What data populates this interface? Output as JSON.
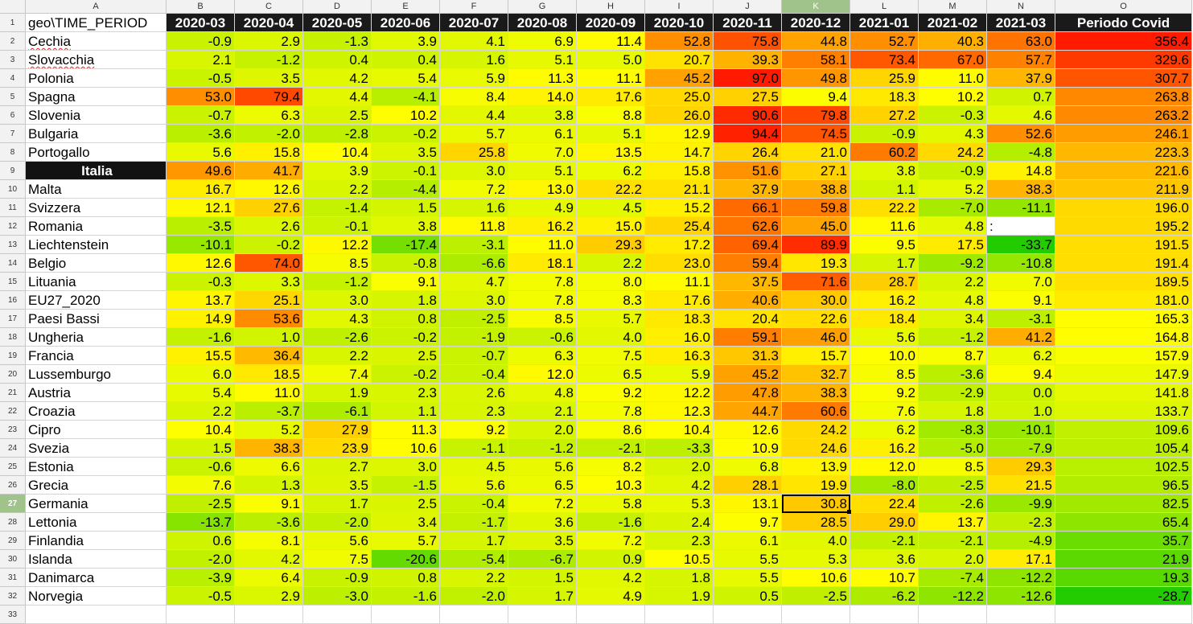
{
  "spreadsheet": {
    "column_letters": [
      "A",
      "B",
      "C",
      "D",
      "E",
      "F",
      "G",
      "H",
      "I",
      "J",
      "K",
      "L",
      "M",
      "N",
      "O"
    ],
    "active_column": "K",
    "active_row": 27,
    "header_row": [
      "geo\\TIME_PERIOD",
      "2020-03",
      "2020-04",
      "2020-05",
      "2020-06",
      "2020-07",
      "2020-08",
      "2020-09",
      "2020-10",
      "2020-11",
      "2020-12",
      "2021-01",
      "2021-02",
      "2021-03",
      "Periodo Covid"
    ],
    "rows": [
      {
        "name": "Cechia",
        "v": [
          "-0.9",
          "2.9",
          "-1.3",
          "3.9",
          "4.1",
          "6.9",
          "11.4",
          "52.8",
          "75.8",
          "44.8",
          "52.7",
          "40.3",
          "63.0",
          "356.4"
        ]
      },
      {
        "name": "Slovacchia",
        "v": [
          "2.1",
          "-1.2",
          "0.4",
          "0.4",
          "1.6",
          "5.1",
          "5.0",
          "20.7",
          "39.3",
          "58.1",
          "73.4",
          "67.0",
          "57.7",
          "329.6"
        ]
      },
      {
        "name": "Polonia",
        "v": [
          "-0.5",
          "3.5",
          "4.2",
          "5.4",
          "5.9",
          "11.3",
          "11.1",
          "45.2",
          "97.0",
          "49.8",
          "25.9",
          "11.0",
          "37.9",
          "307.7"
        ]
      },
      {
        "name": "Spagna",
        "v": [
          "53.0",
          "79.4",
          "4.4",
          "-4.1",
          "8.4",
          "14.0",
          "17.6",
          "25.0",
          "27.5",
          "9.4",
          "18.3",
          "10.2",
          "0.7",
          "263.8"
        ]
      },
      {
        "name": "Slovenia",
        "v": [
          "-0.7",
          "6.3",
          "2.5",
          "10.2",
          "4.4",
          "3.8",
          "8.8",
          "26.0",
          "90.6",
          "79.8",
          "27.2",
          "-0.3",
          "4.6",
          "263.2"
        ]
      },
      {
        "name": "Bulgaria",
        "v": [
          "-3.6",
          "-2.0",
          "-2.8",
          "-0.2",
          "5.7",
          "6.1",
          "5.1",
          "12.9",
          "94.4",
          "74.5",
          "-0.9",
          "4.3",
          "52.6",
          "246.1"
        ]
      },
      {
        "name": "Portogallo",
        "v": [
          "5.6",
          "15.8",
          "10.4",
          "3.5",
          "25.8",
          "7.0",
          "13.5",
          "14.7",
          "26.4",
          "21.0",
          "60.2",
          "24.2",
          "-4.8",
          "223.3"
        ]
      },
      {
        "name": "Italia",
        "v": [
          "49.6",
          "41.7",
          "3.9",
          "-0.1",
          "3.0",
          "5.1",
          "6.2",
          "15.8",
          "51.6",
          "27.1",
          "3.8",
          "-0.9",
          "14.8",
          "221.6"
        ]
      },
      {
        "name": "Malta",
        "v": [
          "16.7",
          "12.6",
          "2.2",
          "-4.4",
          "7.2",
          "13.0",
          "22.2",
          "21.1",
          "37.9",
          "38.8",
          "1.1",
          "5.2",
          "38.3",
          "211.9"
        ]
      },
      {
        "name": "Svizzera",
        "v": [
          "12.1",
          "27.6",
          "-1.4",
          "1.5",
          "1.6",
          "4.9",
          "4.5",
          "15.2",
          "66.1",
          "59.8",
          "22.2",
          "-7.0",
          "-11.1",
          "196.0"
        ]
      },
      {
        "name": "Romania",
        "v": [
          "-3.5",
          "2.6",
          "-0.1",
          "3.8",
          "11.8",
          "16.2",
          "15.0",
          "25.4",
          "62.6",
          "45.0",
          "11.6",
          "4.8",
          ":",
          "195.2"
        ]
      },
      {
        "name": "Liechtenstein",
        "v": [
          "-10.1",
          "-0.2",
          "12.2",
          "-17.4",
          "-3.1",
          "11.0",
          "29.3",
          "17.2",
          "69.4",
          "89.9",
          "9.5",
          "17.5",
          "-33.7",
          "191.5"
        ]
      },
      {
        "name": "Belgio",
        "v": [
          "12.6",
          "74.0",
          "8.5",
          "-0.8",
          "-6.6",
          "18.1",
          "2.2",
          "23.0",
          "59.4",
          "19.3",
          "1.7",
          "-9.2",
          "-10.8",
          "191.4"
        ]
      },
      {
        "name": "Lituania",
        "v": [
          "-0.3",
          "3.3",
          "-1.2",
          "9.1",
          "4.7",
          "7.8",
          "8.0",
          "11.1",
          "37.5",
          "71.6",
          "28.7",
          "2.2",
          "7.0",
          "189.5"
        ]
      },
      {
        "name": "EU27_2020",
        "v": [
          "13.7",
          "25.1",
          "3.0",
          "1.8",
          "3.0",
          "7.8",
          "8.3",
          "17.6",
          "40.6",
          "30.0",
          "16.2",
          "4.8",
          "9.1",
          "181.0"
        ]
      },
      {
        "name": "Paesi Bassi",
        "v": [
          "14.9",
          "53.6",
          "4.3",
          "0.8",
          "-2.5",
          "8.5",
          "5.7",
          "18.3",
          "20.4",
          "22.6",
          "18.4",
          "3.4",
          "-3.1",
          "165.3"
        ]
      },
      {
        "name": "Ungheria",
        "v": [
          "-1.6",
          "1.0",
          "-2.6",
          "-0.2",
          "-1.9",
          "-0.6",
          "4.0",
          "16.0",
          "59.1",
          "46.0",
          "5.6",
          "-1.2",
          "41.2",
          "164.8"
        ]
      },
      {
        "name": "Francia",
        "v": [
          "15.5",
          "36.4",
          "2.2",
          "2.5",
          "-0.7",
          "6.3",
          "7.5",
          "16.3",
          "31.3",
          "15.7",
          "10.0",
          "8.7",
          "6.2",
          "157.9"
        ]
      },
      {
        "name": "Lussemburgo",
        "v": [
          "6.0",
          "18.5",
          "7.4",
          "-0.2",
          "-0.4",
          "12.0",
          "6.5",
          "5.9",
          "45.2",
          "32.7",
          "8.5",
          "-3.6",
          "9.4",
          "147.9"
        ]
      },
      {
        "name": "Austria",
        "v": [
          "5.4",
          "11.0",
          "1.9",
          "2.3",
          "2.6",
          "4.8",
          "9.2",
          "12.2",
          "47.8",
          "38.3",
          "9.2",
          "-2.9",
          "0.0",
          "141.8"
        ]
      },
      {
        "name": "Croazia",
        "v": [
          "2.2",
          "-3.7",
          "-6.1",
          "1.1",
          "2.3",
          "2.1",
          "7.8",
          "12.3",
          "44.7",
          "60.6",
          "7.6",
          "1.8",
          "1.0",
          "133.7"
        ]
      },
      {
        "name": "Cipro",
        "v": [
          "10.4",
          "5.2",
          "27.9",
          "11.3",
          "9.2",
          "2.0",
          "8.6",
          "10.4",
          "12.6",
          "24.2",
          "6.2",
          "-8.3",
          "-10.1",
          "109.6"
        ]
      },
      {
        "name": "Svezia",
        "v": [
          "1.5",
          "38.3",
          "23.9",
          "10.6",
          "-1.1",
          "-1.2",
          "-2.1",
          "-3.3",
          "10.9",
          "24.6",
          "16.2",
          "-5.0",
          "-7.9",
          "105.4"
        ]
      },
      {
        "name": "Estonia",
        "v": [
          "-0.6",
          "6.6",
          "2.7",
          "3.0",
          "4.5",
          "5.6",
          "8.2",
          "2.0",
          "6.8",
          "13.9",
          "12.0",
          "8.5",
          "29.3",
          "102.5"
        ]
      },
      {
        "name": "Grecia",
        "v": [
          "7.6",
          "1.3",
          "3.5",
          "-1.5",
          "5.6",
          "6.5",
          "10.3",
          "4.2",
          "28.1",
          "19.9",
          "-8.0",
          "-2.5",
          "21.5",
          "96.5"
        ]
      },
      {
        "name": "Germania",
        "v": [
          "-2.5",
          "9.1",
          "1.7",
          "2.5",
          "-0.4",
          "7.2",
          "5.8",
          "5.3",
          "13.1",
          "30.8",
          "22.4",
          "-2.6",
          "-9.9",
          "82.5"
        ]
      },
      {
        "name": "Lettonia",
        "v": [
          "-13.7",
          "-3.6",
          "-2.0",
          "3.4",
          "-1.7",
          "3.6",
          "-1.6",
          "2.4",
          "9.7",
          "28.5",
          "29.0",
          "13.7",
          "-2.3",
          "65.4"
        ]
      },
      {
        "name": "Finlandia",
        "v": [
          "0.6",
          "8.1",
          "5.6",
          "5.7",
          "1.7",
          "3.5",
          "7.2",
          "2.3",
          "6.1",
          "4.0",
          "-2.1",
          "-2.1",
          "-4.9",
          "35.7"
        ]
      },
      {
        "name": "Islanda",
        "v": [
          "-2.0",
          "4.2",
          "7.5",
          "-20.6",
          "-5.4",
          "-6.7",
          "0.9",
          "10.5",
          "5.5",
          "5.3",
          "3.6",
          "2.0",
          "17.1",
          "21.9"
        ]
      },
      {
        "name": "Danimarca",
        "v": [
          "-3.9",
          "6.4",
          "-0.9",
          "0.8",
          "2.2",
          "1.5",
          "4.2",
          "1.8",
          "5.5",
          "10.6",
          "10.7",
          "-7.4",
          "-12.2",
          "19.3"
        ]
      },
      {
        "name": "Norvegia",
        "v": [
          "-0.5",
          "2.9",
          "-3.0",
          "-1.6",
          "-2.0",
          "1.7",
          "4.9",
          "1.9",
          "0.5",
          "-2.5",
          "-6.2",
          "-12.2",
          "-12.6",
          "-28.7"
        ]
      }
    ],
    "colors": {
      "scale_low": "#22cc00",
      "scale_mid": "#ffff00",
      "scale_high": "#ff1a00",
      "header_bg": "#1a1a1a",
      "header_fg": "#ffffff"
    }
  }
}
